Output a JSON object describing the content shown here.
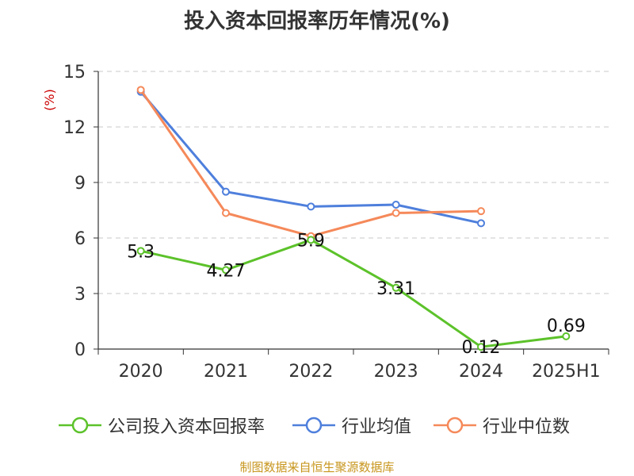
{
  "title": "投入资本回报率历年情况(%)",
  "source": "制图数据来自恒生聚源数据库",
  "chart_data": {
    "type": "line",
    "title": "投入资本回报率历年情况(%)",
    "ylabel": "(%)",
    "ylim": [
      0,
      15
    ],
    "yticks": [
      "0",
      "3",
      "6",
      "9",
      "12",
      "15"
    ],
    "categories": [
      "2020",
      "2021",
      "2022",
      "2023",
      "2024",
      "2025H1"
    ],
    "grid": true,
    "legend_position": "bottom",
    "series": [
      {
        "name": "公司投入资本回报率",
        "color": "#5cc22a",
        "values": [
          5.3,
          4.27,
          5.9,
          3.31,
          0.12,
          0.69
        ],
        "labels": [
          "5.3",
          "4.27",
          "5.9",
          "3.31",
          "0.12",
          "0.69"
        ]
      },
      {
        "name": "行业均值",
        "color": "#4e7fdc",
        "values": [
          13.9,
          8.5,
          7.7,
          7.8,
          6.8,
          null
        ]
      },
      {
        "name": "行业中位数",
        "color": "#f5895a",
        "values": [
          14.0,
          7.35,
          6.1,
          7.35,
          7.45,
          null
        ]
      }
    ]
  }
}
